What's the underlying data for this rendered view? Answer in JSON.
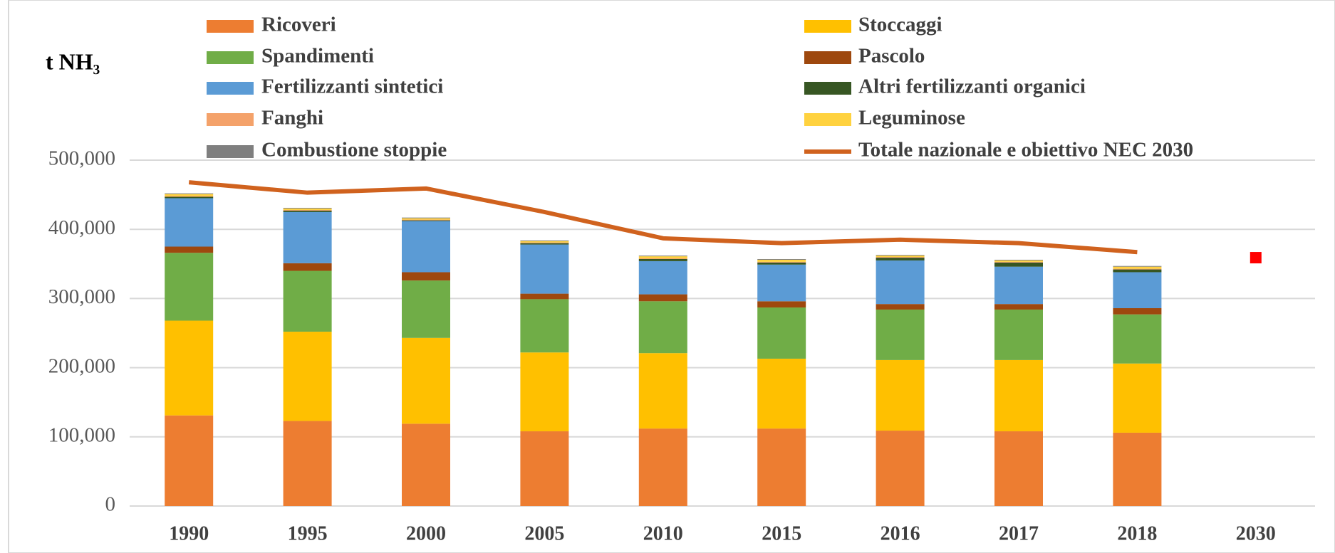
{
  "chart_data": {
    "type": "stacked_bar_line",
    "ylabel": "t NH₃",
    "categories": [
      "1990",
      "1995",
      "2000",
      "2005",
      "2010",
      "2015",
      "2016",
      "2017",
      "2018",
      "2030"
    ],
    "ylim": [
      0,
      500000
    ],
    "yticks": [
      0,
      {
        "value": 100000,
        "label": "100,000"
      },
      {
        "value": 200000,
        "label": "200,000"
      },
      {
        "value": 300000,
        "label": "300,000"
      },
      {
        "value": 400000,
        "label": "400,000"
      },
      {
        "value": 500000,
        "label": "500,000"
      }
    ],
    "grid": true,
    "series": [
      {
        "name": "Ricoveri",
        "color": "#ed7d31",
        "values": [
          131000,
          123000,
          119000,
          108000,
          112000,
          112000,
          109000,
          108000,
          106000,
          null
        ]
      },
      {
        "name": "Stoccaggi",
        "color": "#ffc000",
        "values": [
          137000,
          129000,
          124000,
          114000,
          109000,
          101000,
          102000,
          103000,
          100000,
          null
        ]
      },
      {
        "name": "Spandimenti",
        "color": "#70ad47",
        "values": [
          98000,
          88000,
          83000,
          77000,
          75000,
          74000,
          73000,
          73000,
          71000,
          null
        ]
      },
      {
        "name": "Pascolo",
        "color": "#9e480e",
        "values": [
          9000,
          11000,
          12000,
          8000,
          10000,
          9000,
          8000,
          8000,
          9000,
          null
        ]
      },
      {
        "name": "Fertilizzanti sintetici",
        "color": "#5b9bd5",
        "values": [
          70000,
          74000,
          74000,
          71000,
          48000,
          53000,
          63000,
          54000,
          52000,
          null
        ]
      },
      {
        "name": "Altri fertilizzanti organici",
        "color": "#375623",
        "values": [
          2000,
          2000,
          1000,
          2000,
          3000,
          3000,
          4000,
          6000,
          4000,
          null
        ]
      },
      {
        "name": "Fanghi",
        "color": "#f4a26a",
        "values": [
          1000,
          1000,
          1000,
          1000,
          1000,
          1000,
          1000,
          1000,
          1000,
          null
        ]
      },
      {
        "name": "Leguminose",
        "color": "#ffd23f",
        "values": [
          3000,
          2000,
          2000,
          2000,
          3000,
          3000,
          2000,
          2000,
          3000,
          null
        ]
      },
      {
        "name": "Combustione stoppie",
        "color": "#7f7f7f",
        "values": [
          1000,
          1000,
          1000,
          1000,
          1000,
          1000,
          1000,
          1000,
          1000,
          null
        ]
      },
      {
        "name": "Totale nazionale e obiettivo NEC 2030",
        "color": "#d0621e",
        "type": "line",
        "values": [
          468000,
          453000,
          459000,
          425000,
          387000,
          380000,
          385000,
          380000,
          367000,
          null
        ]
      }
    ],
    "nec_target": {
      "value": 359000,
      "color": "#ff0000"
    }
  }
}
